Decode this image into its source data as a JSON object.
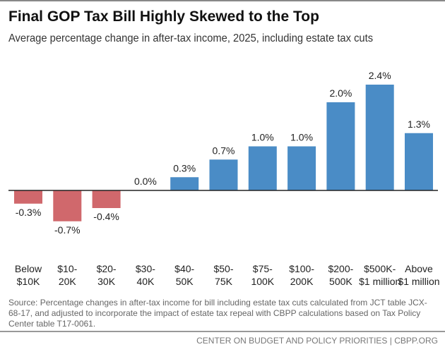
{
  "chart_data": {
    "type": "bar",
    "title": "Final GOP Tax Bill Highly Skewed to the Top",
    "subtitle": "Average percentage change in after-tax income, 2025, including estate tax cuts",
    "categories": [
      [
        "Below",
        "$10K"
      ],
      [
        "$10-",
        "20K"
      ],
      [
        "$20-",
        "30K"
      ],
      [
        "$30-",
        "40K"
      ],
      [
        "$40-",
        "50K"
      ],
      [
        "$50-",
        "75K"
      ],
      [
        "$75-",
        "100K"
      ],
      [
        "$100-",
        "200K"
      ],
      [
        "$200-",
        "500K"
      ],
      [
        "$500K-",
        "$1 million"
      ],
      [
        "Above",
        "$1 million"
      ]
    ],
    "values": [
      -0.3,
      -0.7,
      -0.4,
      0.0,
      0.3,
      0.7,
      1.0,
      1.0,
      2.0,
      2.4,
      1.3
    ],
    "data_labels": [
      "-0.3%",
      "-0.7%",
      "-0.4%",
      "0.0%",
      "0.3%",
      "0.7%",
      "1.0%",
      "1.0%",
      "2.0%",
      "2.4%",
      "1.3%"
    ],
    "colors": {
      "positive": "#4a8cc6",
      "negative": "#d0686c"
    },
    "grid": false,
    "ylim": [
      -0.8,
      2.6
    ]
  },
  "source": "Source: Percentage changes in after-tax income for bill including estate tax cuts calculated from JCT table JCX-68-17, and adjusted to incorporate the impact of estate tax repeal with CBPP calculations based on Tax Policy Center table T17-0061.",
  "footer": "CENTER ON BUDGET AND POLICY PRIORITIES | CBPP.ORG"
}
